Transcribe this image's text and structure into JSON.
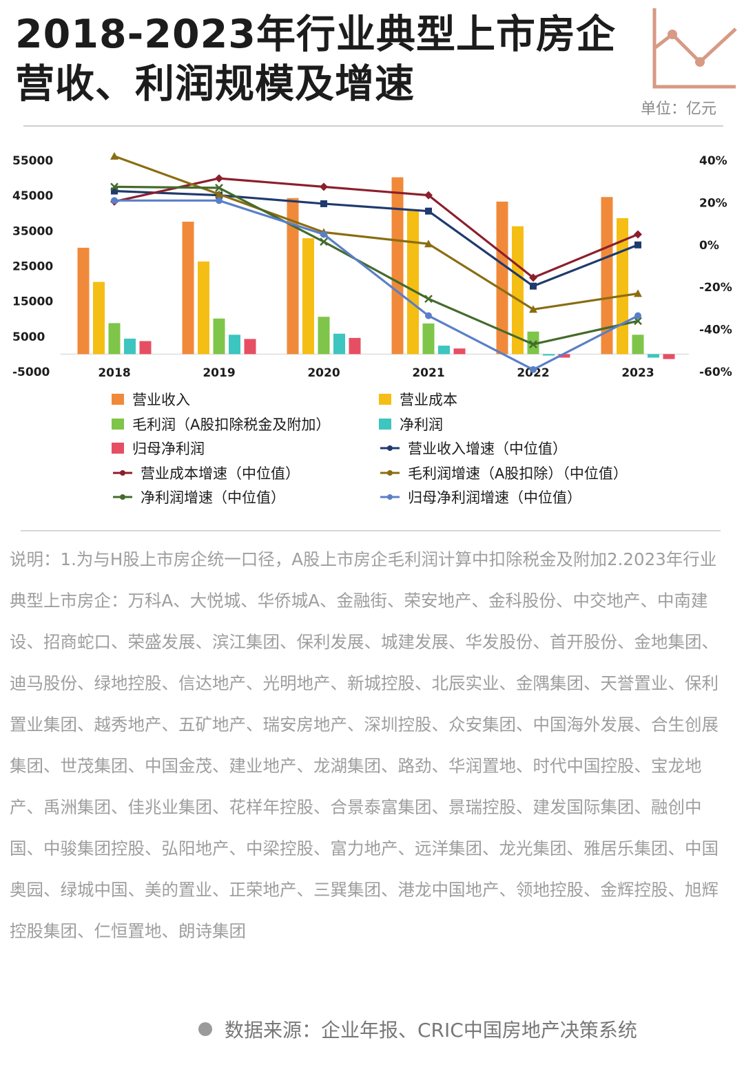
{
  "header": {
    "title_line1": "2018-2023年行业典型上市房企",
    "title_line2": "营收、利润规模及增速",
    "unit": "单位：亿元"
  },
  "colors": {
    "icon": "#d79a84"
  },
  "chart_data": {
    "type": "bar",
    "categories": [
      "2018",
      "2019",
      "2020",
      "2021",
      "2022",
      "2023"
    ],
    "ylim": [
      -5000,
      55000
    ],
    "yticks": [
      "55000",
      "45000",
      "35000",
      "25000",
      "15000",
      "5000",
      "-5000"
    ],
    "y2lim": [
      -60,
      40
    ],
    "y2ticks": [
      "40%",
      "20%",
      "0%",
      "-20%",
      "-40%",
      "-60%"
    ],
    "bar_series": [
      {
        "name": "营业收入",
        "color": "#f08a3a",
        "values": [
          30200,
          37600,
          44300,
          50200,
          43300,
          44600
        ]
      },
      {
        "name": "营业成本",
        "color": "#f5be14",
        "values": [
          20500,
          26300,
          32900,
          40700,
          36300,
          38600
        ]
      },
      {
        "name": "毛利润（A股扣除税金及附加）",
        "color": "#7ec54a",
        "values": [
          8800,
          10100,
          10600,
          8700,
          6400,
          5500
        ]
      },
      {
        "name": "净利润",
        "color": "#3dc5c0",
        "values": [
          4400,
          5500,
          5800,
          2400,
          -400,
          -1000
        ]
      },
      {
        "name": "归母净利润",
        "color": "#e64f63",
        "values": [
          3700,
          4300,
          4600,
          1600,
          -1000,
          -1400
        ]
      }
    ],
    "line_series": [
      {
        "name": "营业收入增速（中位值）",
        "color": "#1f3a6e",
        "marker": "square",
        "values": [
          25.5,
          23.5,
          19.5,
          16,
          -19.5,
          0
        ]
      },
      {
        "name": "营业成本增速（中位值）",
        "color": "#8b1f2c",
        "marker": "diamond",
        "values": [
          20.5,
          31.5,
          27.5,
          23.5,
          -15.5,
          5
        ]
      },
      {
        "name": "毛利润增速（A股扣除）（中位值）",
        "color": "#8a6d12",
        "marker": "triangle",
        "values": [
          42,
          24,
          6,
          0.5,
          -30.5,
          -23
        ]
      },
      {
        "name": "净利润增速（中位值）",
        "color": "#446b2c",
        "marker": "cross",
        "values": [
          27.5,
          27,
          1.5,
          -25.5,
          -47,
          -36
        ]
      },
      {
        "name": "归母净利润增速（中位值）",
        "color": "#5a7fc8",
        "marker": "circle",
        "values": [
          21,
          21,
          5,
          -33.5,
          -59,
          -33.5
        ]
      }
    ]
  },
  "legend": [
    {
      "label": "营业收入"
    },
    {
      "label": "营业成本"
    },
    {
      "label": "毛利润（A股扣除税金及附加）"
    },
    {
      "label": "净利润"
    },
    {
      "label": "归母净利润"
    },
    {
      "label": "营业收入增速（中位值）"
    },
    {
      "label": "营业成本增速（中位值）"
    },
    {
      "label": "毛利润增速（A股扣除）（中位值）"
    },
    {
      "label": "净利润增速（中位值）"
    },
    {
      "label": "归母净利润增速（中位值）"
    }
  ],
  "note": "说明：1.为与H股上市房企统一口径，A股上市房企毛利润计算中扣除税金及附加2.2023年行业典型上市房企：万科A、大悦城、华侨城A、金融街、荣安地产、金科股份、中交地产、中南建设、招商蛇口、荣盛发展、滨江集团、保利发展、城建发展、华发股份、首开股份、金地集团、迪马股份、绿地控股、信达地产、光明地产、新城控股、北辰实业、金隅集团、天誉置业、保利置业集团、越秀地产、五矿地产、瑞安房地产、深圳控股、众安集团、中国海外发展、合生创展集团、世茂集团、中国金茂、建业地产、龙湖集团、路劲、华润置地、时代中国控股、宝龙地产、禹洲集团、佳兆业集团、花样年控股、合景泰富集团、景瑞控股、建发国际集团、融创中国、中骏集团控股、弘阳地产、中梁控股、富力地产、远洋集团、龙光集团、雅居乐集团、中国奥园、绿城中国、美的置业、正荣地产、三巽集团、港龙中国地产、领地控股、金辉控股、旭辉控股集团、仁恒置地、朗诗集团",
  "source": "数据来源：企业年报、CRIC中国房地产决策系统"
}
